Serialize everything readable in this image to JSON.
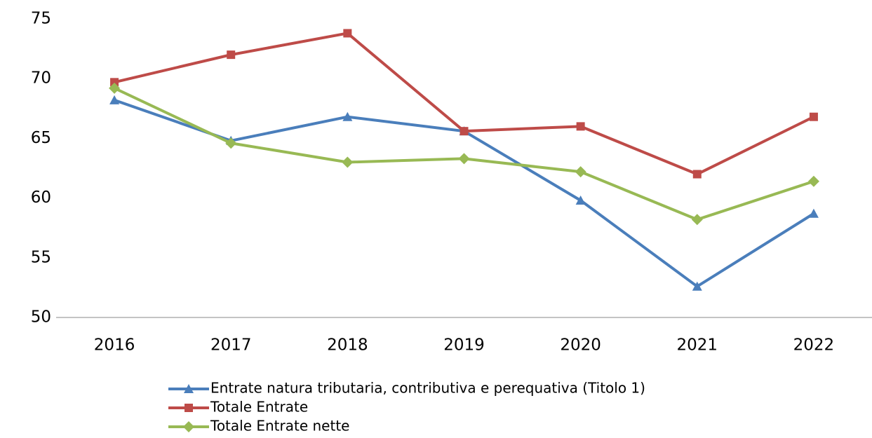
{
  "chart_data": {
    "type": "line",
    "categories": [
      "2016",
      "2017",
      "2018",
      "2019",
      "2020",
      "2021",
      "2022"
    ],
    "series": [
      {
        "name": "Entrate natura tributaria, contributiva e perequativa (Titolo 1)",
        "color": "#4a7ebb",
        "marker": "triangle",
        "values": [
          68.2,
          64.8,
          66.8,
          65.6,
          59.8,
          52.6,
          58.7
        ]
      },
      {
        "name": "Totale Entrate",
        "color": "#be4b48",
        "marker": "square",
        "values": [
          69.7,
          72.0,
          73.8,
          65.6,
          66.0,
          62.0,
          66.8
        ]
      },
      {
        "name": "Totale Entrate nette",
        "color": "#98b954",
        "marker": "diamond",
        "values": [
          69.2,
          64.6,
          63.0,
          63.3,
          62.2,
          58.2,
          61.4
        ]
      }
    ],
    "ylim": [
      50,
      75
    ],
    "yticks": [
      50,
      55,
      60,
      65,
      70,
      75
    ],
    "grid": false,
    "legend": "bottom"
  }
}
